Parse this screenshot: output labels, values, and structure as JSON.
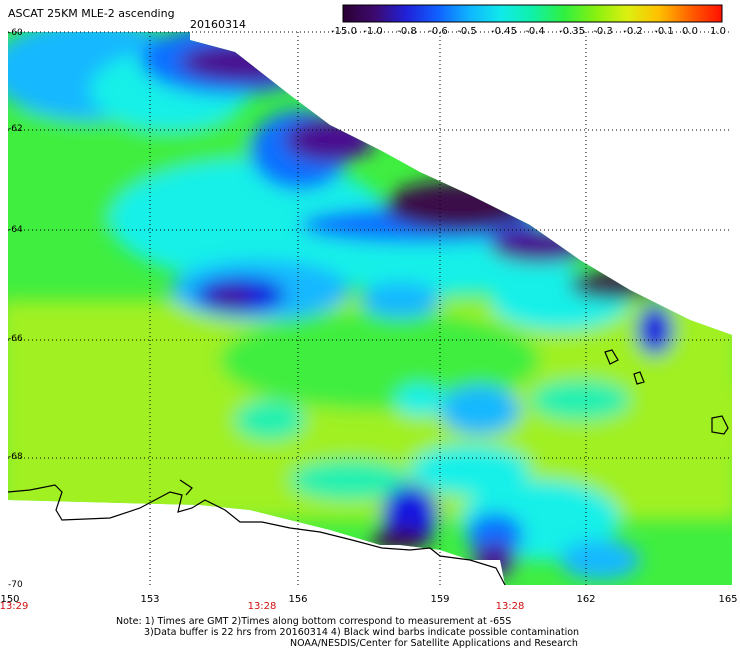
{
  "header": {
    "title": "ASCAT 25KM MLE-2 ascending",
    "date": "20160314"
  },
  "colorbar": {
    "labels": [
      "-15.0",
      "-1.0",
      "-0.8",
      "-0.6",
      "-0.5",
      "-0.45",
      "-0.4",
      "-0.35",
      "-0.3",
      "-0.2",
      "-0.1",
      "0.0",
      "1.0"
    ],
    "colors": [
      "#2a0033",
      "#3d0a6e",
      "#2020d8",
      "#1060ff",
      "#10b4ff",
      "#10eaea",
      "#10f0a8",
      "#30f040",
      "#88f010",
      "#dcf010",
      "#ffc000",
      "#ff6000",
      "#ff1000"
    ]
  },
  "map": {
    "lat_labels": [
      "-60",
      "-62",
      "-64",
      "-66",
      "-68",
      "-70"
    ],
    "lon_labels": [
      "150",
      "153",
      "156",
      "159",
      "162",
      "165"
    ],
    "time_labels": [
      "13:29",
      "13:28",
      "13:28"
    ],
    "palette": {
      "dark_purple": "#3a0a4a",
      "purple": "#4a1090",
      "blue": "#1818e0",
      "mid_blue": "#1070ff",
      "light_blue": "#18b8ff",
      "cyan": "#18f0e8",
      "aqua_green": "#20f0b0",
      "green": "#40ee40",
      "yellow_green": "#a0f020"
    }
  },
  "notes": {
    "line1": "Note: 1) Times are GMT 2)Times along bottom correspond to measurement at -65S",
    "line2": "3)Data buffer is 22 hrs from 20160314 4) Black wind barbs indicate possible contamination",
    "line3": "NOAA/NESDIS/Center for Satellite Applications and Research"
  }
}
